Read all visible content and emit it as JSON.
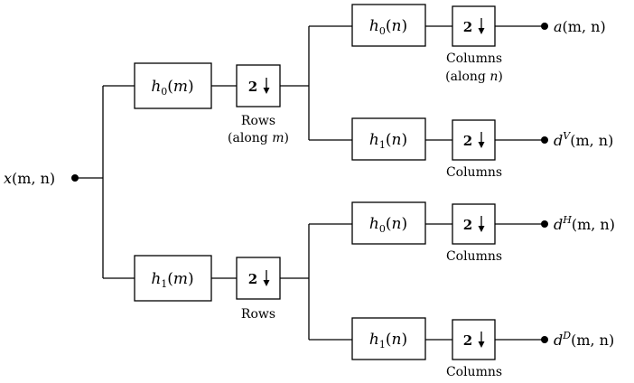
{
  "input": {
    "fn": "x",
    "args": "(m, n)"
  },
  "stage1": {
    "top_filter": {
      "name": "h",
      "sub": "0",
      "var": "m"
    },
    "bottom_filter": {
      "name": "h",
      "sub": "1",
      "var": "m"
    },
    "downsampler": "2",
    "top_caption_line1": "Rows",
    "top_caption_line2_pre": "(along ",
    "top_caption_line2_var": "m",
    "top_caption_line2_post": ")",
    "bottom_caption": "Rows"
  },
  "stage2": {
    "filters": [
      {
        "name": "h",
        "sub": "0",
        "var": "n"
      },
      {
        "name": "h",
        "sub": "1",
        "var": "n"
      },
      {
        "name": "h",
        "sub": "0",
        "var": "n"
      },
      {
        "name": "h",
        "sub": "1",
        "var": "n"
      }
    ],
    "downsampler": "2",
    "captions": {
      "c1_line1": "Columns",
      "c1_line2_pre": "(along ",
      "c1_line2_var": "n",
      "c1_line2_post": ")",
      "c2": "Columns",
      "c3": "Columns",
      "c4": "Columns"
    }
  },
  "outputs": [
    {
      "name": "a",
      "sup": "",
      "args": "(m, n)"
    },
    {
      "name": "d",
      "sup": "V",
      "args": "(m, n)"
    },
    {
      "name": "d",
      "sup": "H",
      "args": "(m, n)"
    },
    {
      "name": "d",
      "sup": "D",
      "args": "(m, n)"
    }
  ]
}
